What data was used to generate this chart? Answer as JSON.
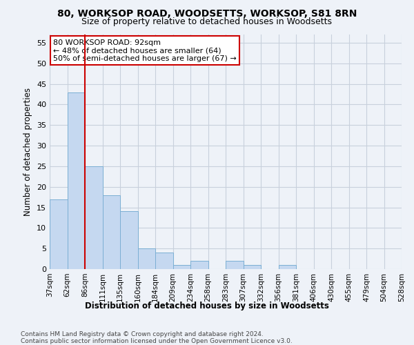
{
  "title_line1": "80, WORKSOP ROAD, WOODSETTS, WORKSOP, S81 8RN",
  "title_line2": "Size of property relative to detached houses in Woodsetts",
  "xlabel": "Distribution of detached houses by size in Woodsetts",
  "ylabel": "Number of detached properties",
  "bar_values": [
    17,
    43,
    25,
    18,
    14,
    5,
    4,
    1,
    2,
    0,
    2,
    1,
    0,
    1,
    0,
    0,
    0,
    0,
    0,
    0
  ],
  "bin_labels": [
    "37sqm",
    "62sqm",
    "86sqm",
    "111sqm",
    "135sqm",
    "160sqm",
    "184sqm",
    "209sqm",
    "234sqm",
    "258sqm",
    "283sqm",
    "307sqm",
    "332sqm",
    "356sqm",
    "381sqm",
    "406sqm",
    "430sqm",
    "455sqm",
    "479sqm",
    "504sqm",
    "528sqm"
  ],
  "bar_color": "#c5d8f0",
  "bar_edge_color": "#7bafd4",
  "grid_color": "#c8d0dc",
  "annotation_text": "80 WORKSOP ROAD: 92sqm\n← 48% of detached houses are smaller (64)\n50% of semi-detached houses are larger (67) →",
  "vline_color": "#cc0000",
  "annotation_box_edge": "#cc0000",
  "ylim": [
    0,
    57
  ],
  "yticks": [
    0,
    5,
    10,
    15,
    20,
    25,
    30,
    35,
    40,
    45,
    50,
    55
  ],
  "footnote": "Contains HM Land Registry data © Crown copyright and database right 2024.\nContains public sector information licensed under the Open Government Licence v3.0.",
  "background_color": "#eef2f8",
  "plot_bg_color": "#eef2f8"
}
